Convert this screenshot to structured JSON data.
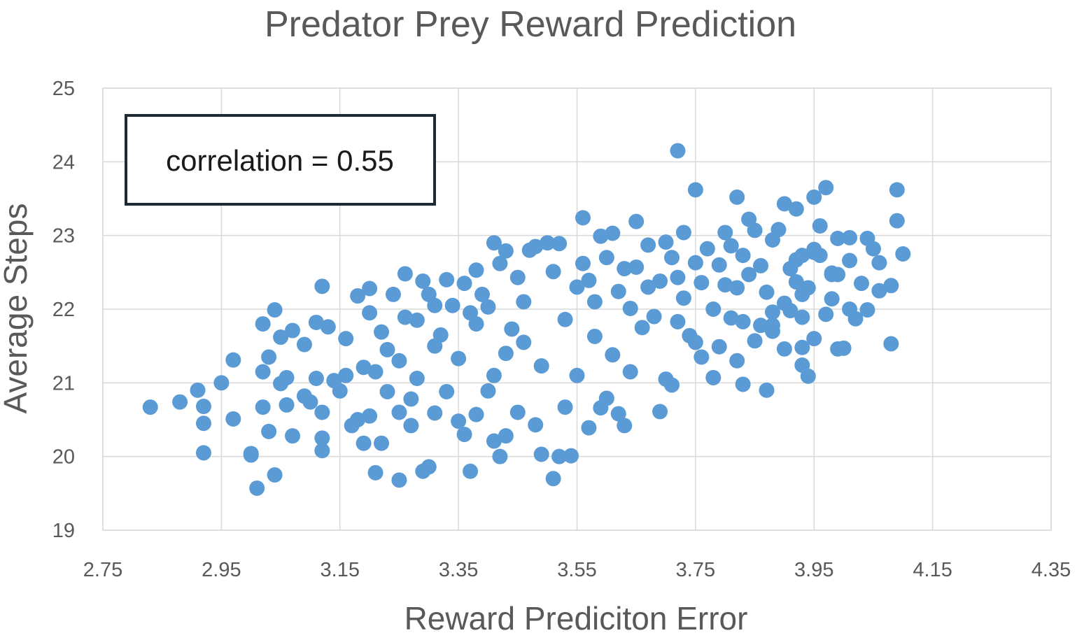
{
  "chart_data": {
    "type": "scatter",
    "title": "Predator Prey  Reward Prediction",
    "xlabel": "Reward Prediciton Error",
    "ylabel": "Average Steps",
    "xlim": [
      2.75,
      4.35
    ],
    "ylim": [
      19,
      25
    ],
    "xticks": [
      "2.75",
      "2.95",
      "3.15",
      "3.35",
      "3.55",
      "3.75",
      "3.95",
      "4.15",
      "4.35"
    ],
    "yticks": [
      "19",
      "20",
      "21",
      "22",
      "23",
      "24",
      "25"
    ],
    "grid": true,
    "annotation": "correlation = 0.55",
    "color": "#5b9bd5",
    "points": [
      [
        2.83,
        20.67
      ],
      [
        2.88,
        20.74
      ],
      [
        2.91,
        20.9
      ],
      [
        2.92,
        20.68
      ],
      [
        2.92,
        20.45
      ],
      [
        2.92,
        20.05
      ],
      [
        2.95,
        21.0
      ],
      [
        2.97,
        21.31
      ],
      [
        2.97,
        20.51
      ],
      [
        3.0,
        20.02
      ],
      [
        3.0,
        20.04
      ],
      [
        3.01,
        19.57
      ],
      [
        3.02,
        20.67
      ],
      [
        3.02,
        21.15
      ],
      [
        3.03,
        21.35
      ],
      [
        3.03,
        20.34
      ],
      [
        3.04,
        19.75
      ],
      [
        3.04,
        21.99
      ],
      [
        3.02,
        21.8
      ],
      [
        3.05,
        21.62
      ],
      [
        3.05,
        20.99
      ],
      [
        3.06,
        21.07
      ],
      [
        3.06,
        20.7
      ],
      [
        3.07,
        20.28
      ],
      [
        3.07,
        21.71
      ],
      [
        3.09,
        21.52
      ],
      [
        3.09,
        20.82
      ],
      [
        3.1,
        20.74
      ],
      [
        3.11,
        21.82
      ],
      [
        3.11,
        21.06
      ],
      [
        3.12,
        20.6
      ],
      [
        3.12,
        20.25
      ],
      [
        3.12,
        20.08
      ],
      [
        3.12,
        22.31
      ],
      [
        3.13,
        21.76
      ],
      [
        3.14,
        21.03
      ],
      [
        3.15,
        20.89
      ],
      [
        3.16,
        21.6
      ],
      [
        3.16,
        21.1
      ],
      [
        3.17,
        20.42
      ],
      [
        3.18,
        22.18
      ],
      [
        3.18,
        20.5
      ],
      [
        3.19,
        21.21
      ],
      [
        3.19,
        20.18
      ],
      [
        3.2,
        22.28
      ],
      [
        3.2,
        21.95
      ],
      [
        3.2,
        20.55
      ],
      [
        3.21,
        21.15
      ],
      [
        3.21,
        19.78
      ],
      [
        3.22,
        20.18
      ],
      [
        3.22,
        21.69
      ],
      [
        3.23,
        20.88
      ],
      [
        3.23,
        21.45
      ],
      [
        3.24,
        22.2
      ],
      [
        3.25,
        20.6
      ],
      [
        3.25,
        21.3
      ],
      [
        3.25,
        19.68
      ],
      [
        3.26,
        22.48
      ],
      [
        3.26,
        21.89
      ],
      [
        3.27,
        20.78
      ],
      [
        3.27,
        20.42
      ],
      [
        3.28,
        21.85
      ],
      [
        3.28,
        21.06
      ],
      [
        3.29,
        22.38
      ],
      [
        3.29,
        19.8
      ],
      [
        3.3,
        22.2
      ],
      [
        3.3,
        19.86
      ],
      [
        3.31,
        22.05
      ],
      [
        3.31,
        20.59
      ],
      [
        3.31,
        21.5
      ],
      [
        3.32,
        21.65
      ],
      [
        3.33,
        22.4
      ],
      [
        3.33,
        20.88
      ],
      [
        3.34,
        22.05
      ],
      [
        3.35,
        20.48
      ],
      [
        3.35,
        21.33
      ],
      [
        3.36,
        20.3
      ],
      [
        3.36,
        22.35
      ],
      [
        3.37,
        21.95
      ],
      [
        3.37,
        19.8
      ],
      [
        3.38,
        22.53
      ],
      [
        3.38,
        20.57
      ],
      [
        3.38,
        21.8
      ],
      [
        3.39,
        22.2
      ],
      [
        3.4,
        22.03
      ],
      [
        3.4,
        20.89
      ],
      [
        3.41,
        22.9
      ],
      [
        3.41,
        21.1
      ],
      [
        3.41,
        20.21
      ],
      [
        3.42,
        22.62
      ],
      [
        3.42,
        20.0
      ],
      [
        3.43,
        22.79
      ],
      [
        3.43,
        21.4
      ],
      [
        3.43,
        20.28
      ],
      [
        3.44,
        21.73
      ],
      [
        3.45,
        22.43
      ],
      [
        3.45,
        20.6
      ],
      [
        3.46,
        22.1
      ],
      [
        3.46,
        21.55
      ],
      [
        3.47,
        22.8
      ],
      [
        3.48,
        22.85
      ],
      [
        3.48,
        20.43
      ],
      [
        3.49,
        21.23
      ],
      [
        3.49,
        20.03
      ],
      [
        3.5,
        22.9
      ],
      [
        3.51,
        22.51
      ],
      [
        3.51,
        19.7
      ],
      [
        3.52,
        22.89
      ],
      [
        3.52,
        20.0
      ],
      [
        3.53,
        21.86
      ],
      [
        3.53,
        20.67
      ],
      [
        3.54,
        20.01
      ],
      [
        3.55,
        22.3
      ],
      [
        3.55,
        21.1
      ],
      [
        3.56,
        22.62
      ],
      [
        3.56,
        23.24
      ],
      [
        3.57,
        22.39
      ],
      [
        3.57,
        20.39
      ],
      [
        3.58,
        22.1
      ],
      [
        3.58,
        21.63
      ],
      [
        3.59,
        22.99
      ],
      [
        3.59,
        20.66
      ],
      [
        3.6,
        22.7
      ],
      [
        3.6,
        20.79
      ],
      [
        3.61,
        23.03
      ],
      [
        3.61,
        21.38
      ],
      [
        3.62,
        22.24
      ],
      [
        3.62,
        20.58
      ],
      [
        3.63,
        22.55
      ],
      [
        3.63,
        20.42
      ],
      [
        3.64,
        22.01
      ],
      [
        3.64,
        21.15
      ],
      [
        3.65,
        23.19
      ],
      [
        3.65,
        22.57
      ],
      [
        3.66,
        21.75
      ],
      [
        3.67,
        22.87
      ],
      [
        3.67,
        22.3
      ],
      [
        3.68,
        21.9
      ],
      [
        3.69,
        22.38
      ],
      [
        3.69,
        20.61
      ],
      [
        3.7,
        22.91
      ],
      [
        3.7,
        21.05
      ],
      [
        3.71,
        22.7
      ],
      [
        3.71,
        20.97
      ],
      [
        3.72,
        22.43
      ],
      [
        3.72,
        21.83
      ],
      [
        3.73,
        23.04
      ],
      [
        3.73,
        22.15
      ],
      [
        3.74,
        21.64
      ],
      [
        3.75,
        22.63
      ],
      [
        3.75,
        21.55
      ],
      [
        3.76,
        22.36
      ],
      [
        3.76,
        21.35
      ],
      [
        3.77,
        22.82
      ],
      [
        3.78,
        22.0
      ],
      [
        3.78,
        21.07
      ],
      [
        3.79,
        22.6
      ],
      [
        3.79,
        21.49
      ],
      [
        3.8,
        23.04
      ],
      [
        3.8,
        22.33
      ],
      [
        3.81,
        22.86
      ],
      [
        3.81,
        21.88
      ],
      [
        3.82,
        22.29
      ],
      [
        3.82,
        21.3
      ],
      [
        3.83,
        22.73
      ],
      [
        3.83,
        21.83
      ],
      [
        3.84,
        23.22
      ],
      [
        3.84,
        22.47
      ],
      [
        3.85,
        23.07
      ],
      [
        3.85,
        21.57
      ],
      [
        3.86,
        22.59
      ],
      [
        3.86,
        21.78
      ],
      [
        3.87,
        22.23
      ],
      [
        3.87,
        20.9
      ],
      [
        3.88,
        22.94
      ],
      [
        3.88,
        21.96
      ],
      [
        3.89,
        23.08
      ],
      [
        3.9,
        22.08
      ],
      [
        3.9,
        21.46
      ],
      [
        3.91,
        22.55
      ],
      [
        3.91,
        21.98
      ],
      [
        3.92,
        22.67
      ],
      [
        3.93,
        21.89
      ],
      [
        3.93,
        21.48
      ],
      [
        3.94,
        22.29
      ],
      [
        3.94,
        21.09
      ],
      [
        3.95,
        21.6
      ],
      [
        3.95,
        22.81
      ],
      [
        3.96,
        22.73
      ],
      [
        3.96,
        23.13
      ],
      [
        3.97,
        21.93
      ],
      [
        3.98,
        22.49
      ],
      [
        3.98,
        22.14
      ],
      [
        3.99,
        21.46
      ],
      [
        3.99,
        22.96
      ],
      [
        4.0,
        21.47
      ],
      [
        4.01,
        22.0
      ],
      [
        4.01,
        22.66
      ],
      [
        4.02,
        21.87
      ],
      [
        4.03,
        22.35
      ],
      [
        4.04,
        21.99
      ],
      [
        4.05,
        22.82
      ],
      [
        4.06,
        22.25
      ],
      [
        4.08,
        21.53
      ],
      [
        4.08,
        22.32
      ],
      [
        4.1,
        22.75
      ],
      [
        3.72,
        24.15
      ],
      [
        3.75,
        23.62
      ],
      [
        3.82,
        23.52
      ],
      [
        3.9,
        23.43
      ],
      [
        3.92,
        23.36
      ],
      [
        3.95,
        23.52
      ],
      [
        3.97,
        23.65
      ],
      [
        4.09,
        23.62
      ],
      [
        4.09,
        23.2
      ],
      [
        4.01,
        22.97
      ],
      [
        4.04,
        22.96
      ],
      [
        4.06,
        22.63
      ],
      [
        3.98,
        22.47
      ],
      [
        3.99,
        22.47
      ],
      [
        3.95,
        22.77
      ],
      [
        3.93,
        22.2
      ],
      [
        3.93,
        21.24
      ],
      [
        3.83,
        20.98
      ],
      [
        3.88,
        21.7
      ],
      [
        3.88,
        21.78
      ],
      [
        3.92,
        22.37
      ],
      [
        3.93,
        22.73
      ]
    ]
  }
}
